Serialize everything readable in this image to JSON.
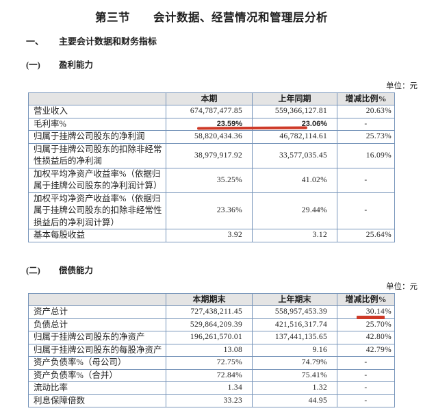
{
  "document": {
    "title": "第三节　　会计数据、经营情况和管理层分析"
  },
  "section_main": {
    "index_label": "一、",
    "index_title": "主要会计数据和财务指标"
  },
  "section1": {
    "sub_label": "(一)",
    "sub_title": "盈利能力",
    "unit_note": "单位：元",
    "table": {
      "headers": [
        "",
        "本期",
        "上年同期",
        "增减比例%"
      ],
      "rows": [
        {
          "label": "营业收入",
          "current": "674,787,477.85",
          "prior": "559,366,127.81",
          "change": "20.63%"
        },
        {
          "label": "毛利率%",
          "current": "23.59%",
          "prior": "23.06%",
          "change": "-",
          "highlight": true
        },
        {
          "label": "归属于挂牌公司股东的净利润",
          "current": "58,820,434.36",
          "prior": "46,782,114.61",
          "change": "25.73%"
        },
        {
          "label": "归属于挂牌公司股东的扣除非经常性损益后的净利润",
          "current": "38,979,917.92",
          "prior": "33,577,035.45",
          "change": "16.09%"
        },
        {
          "label": "加权平均净资产收益率%（依据归属于挂牌公司股东的净利润计算）",
          "current": "35.25%",
          "prior": "41.02%",
          "change": "-"
        },
        {
          "label": "加权平均净资产收益率%（依据归属于挂牌公司股东的扣除非经常性损益后的净利润计算）",
          "current": "23.36%",
          "prior": "29.44%",
          "change": "-"
        },
        {
          "label": "基本每股收益",
          "current": "3.92",
          "prior": "3.12",
          "change": "25.64%"
        }
      ]
    }
  },
  "section2": {
    "sub_label": "(二)",
    "sub_title": "偿债能力",
    "unit_note": "单位：元",
    "table": {
      "headers": [
        "",
        "本期期末",
        "上年期末",
        "增减比例%"
      ],
      "rows": [
        {
          "label": "资产总计",
          "current": "727,438,211.45",
          "prior": "558,957,453.39",
          "change": "30.14%"
        },
        {
          "label": "负债总计",
          "current": "529,864,209.39",
          "prior": "421,516,317.74",
          "change": "25.70%"
        },
        {
          "label": "归属于挂牌公司股东的净资产",
          "current": "196,261,570.01",
          "prior": "137,441,135.65",
          "change": "42.80%"
        },
        {
          "label": "归属于挂牌公司股东的每股净资产",
          "current": "13.08",
          "prior": "9.16",
          "change": "42.79%"
        },
        {
          "label": "资产负债率%（母公司）",
          "current": "72.75%",
          "prior": "74.79%",
          "change": "-"
        },
        {
          "label": "资产负债率%（合并）",
          "current": "72.84%",
          "prior": "75.41%",
          "change": "-"
        },
        {
          "label": "流动比率",
          "current": "1.34",
          "prior": "1.32",
          "change": "-"
        },
        {
          "label": "利息保障倍数",
          "current": "33.23",
          "prior": "44.95",
          "change": "-"
        }
      ]
    }
  },
  "annotations": {
    "gross_margin_underline": {
      "target": "毛利率% 23.59% / 23.06%",
      "color": "#ce3a28"
    },
    "total_assets_change_mark": {
      "target": "30.14%",
      "color": "#ce3a28"
    }
  },
  "colors": {
    "table_border": "#7593b9",
    "header_background": "#e4e4e4",
    "text": "#1f1f1f",
    "annotation_red": "#ce3a28"
  }
}
